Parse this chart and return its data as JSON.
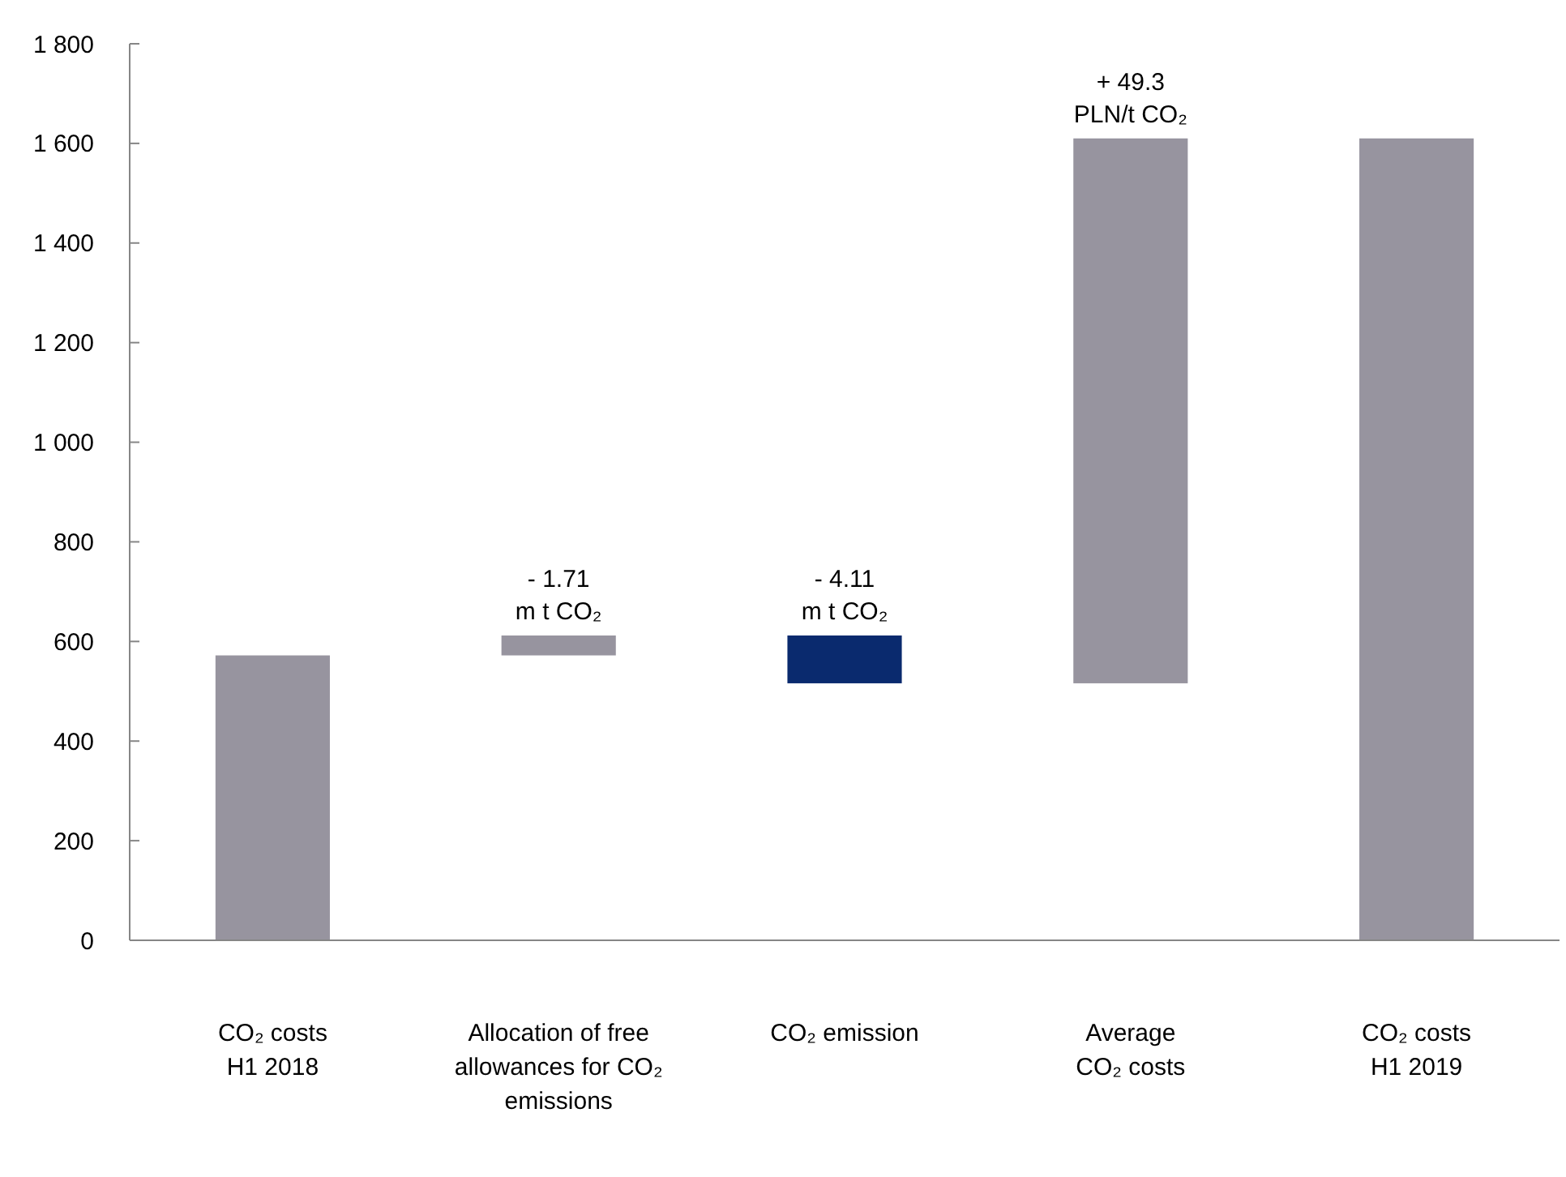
{
  "chart_data": {
    "type": "bar",
    "categories": [
      "CO₂ costs\nH1 2018",
      "Allocation of free\nallowances for CO₂\nemissions",
      "CO₂ emission",
      "Average\nCO₂ costs",
      "CO₂ costs\nH1 2019"
    ],
    "values": [
      572,
      40,
      -96,
      1094,
      1610
    ],
    "base": [
      0,
      572,
      612,
      516,
      0
    ],
    "colors": [
      "#97949f",
      "#97949f",
      "#0a2a6e",
      "#97949f",
      "#97949f"
    ],
    "ylim": [
      0,
      1800
    ],
    "yticks": [
      0,
      200,
      400,
      600,
      800,
      {
        "value": 1000,
        "label": "1 000"
      },
      {
        "value": 1200,
        "label": "1 200"
      },
      {
        "value": 1400,
        "label": "1 400"
      },
      {
        "value": 1600,
        "label": "1 600"
      },
      {
        "value": 1800,
        "label": "1 800"
      }
    ],
    "grid": false,
    "annotations": [
      {
        "text": "- 1.71\nm t CO₂",
        "x": "Allocation of free\nallowances for CO₂\nemissions",
        "y": 612
      },
      {
        "text": "- 4.11\nm t CO₂",
        "x": "CO₂ emission",
        "y": 612
      },
      {
        "text": "+ 49.3\nPLN/t CO₂",
        "x": "Average\nCO₂ costs",
        "y": 1610
      }
    ]
  }
}
